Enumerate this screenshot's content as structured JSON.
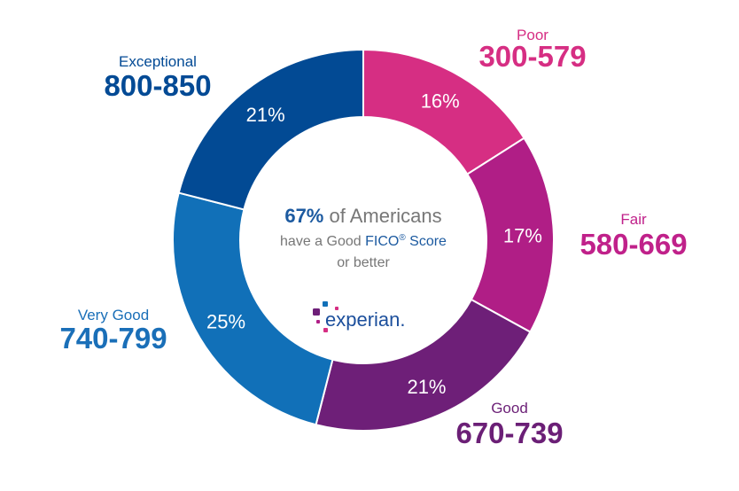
{
  "chart_data": {
    "type": "pie",
    "donut": true,
    "categories": [
      "Poor",
      "Fair",
      "Good",
      "Very Good",
      "Exceptional"
    ],
    "ranges": [
      "300-579",
      "580-669",
      "670-739",
      "740-799",
      "800-850"
    ],
    "values": [
      16,
      17,
      21,
      25,
      21
    ],
    "value_labels": [
      "16%",
      "17%",
      "21%",
      "25%",
      "21%"
    ],
    "colors": [
      "#d62e83",
      "#b01e86",
      "#6e1f78",
      "#1170b8",
      "#024a94"
    ],
    "label_colors": [
      "#d62e83",
      "#c0218a",
      "#6b1f76",
      "#1a6fb8",
      "#034a95"
    ],
    "start": "top",
    "direction": "clockwise"
  },
  "center": {
    "highlight": "67%",
    "line1_rest": " of Americans",
    "line2_pre": "have a Good ",
    "line2_brand": "FICO",
    "line2_reg": "®",
    "line2_post": " Score",
    "line3": "or better",
    "logo": "experian."
  }
}
